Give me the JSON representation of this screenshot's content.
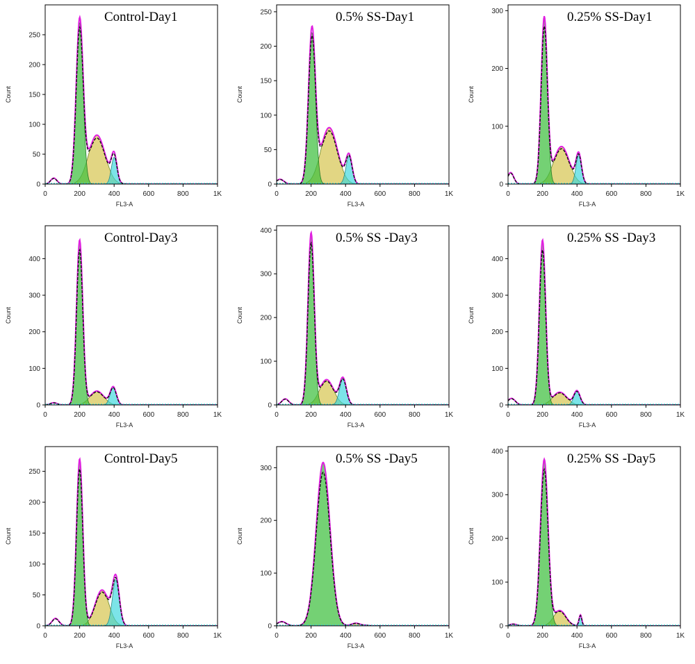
{
  "figure": {
    "colors": {
      "g1": "#3fbf3f",
      "s": "#d8c85a",
      "g2": "#35d6dc",
      "fit": "#e020e0",
      "data": "#111111",
      "frame": "#000000"
    }
  },
  "chart_data": [
    {
      "type": "area",
      "title": "Control-Day1",
      "xlabel": "FL3-A",
      "ylabel": "Count",
      "xlim": [
        0,
        1000
      ],
      "x_ticks": [
        "0",
        "200",
        "400",
        "600",
        "800",
        "1K"
      ],
      "ylim": [
        0,
        300
      ],
      "y_ticks": [
        0,
        50,
        100,
        150,
        200,
        250
      ],
      "g1": {
        "mean": 200,
        "sd": 20,
        "height": 270
      },
      "s": {
        "mean": 300,
        "sd": 48,
        "height": 82
      },
      "g2": {
        "mean": 400,
        "sd": 16,
        "height": 45
      },
      "debris": {
        "mean": 50,
        "sd": 18,
        "height": 10
      }
    },
    {
      "type": "area",
      "title": "0.5% SS-Day1",
      "xlabel": "FL3-A",
      "ylabel": "Count",
      "xlim": [
        0,
        1000
      ],
      "x_ticks": [
        "0",
        "200",
        "400",
        "600",
        "800",
        "1K"
      ],
      "ylim": [
        0,
        260
      ],
      "y_ticks": [
        0,
        50,
        100,
        150,
        200,
        250
      ],
      "g1": {
        "mean": 205,
        "sd": 20,
        "height": 220
      },
      "s": {
        "mean": 305,
        "sd": 48,
        "height": 82
      },
      "g2": {
        "mean": 420,
        "sd": 18,
        "height": 40
      },
      "debris": {
        "mean": 20,
        "sd": 22,
        "height": 7
      }
    },
    {
      "type": "area",
      "title": "0.25% SS-Day1",
      "xlabel": "FL3-A",
      "ylabel": "Count",
      "xlim": [
        0,
        1000
      ],
      "x_ticks": [
        "0",
        "200",
        "400",
        "600",
        "800",
        "1K"
      ],
      "ylim": [
        0,
        310
      ],
      "y_ticks": [
        0,
        100,
        200,
        300
      ],
      "g1": {
        "mean": 210,
        "sd": 18,
        "height": 285
      },
      "s": {
        "mean": 310,
        "sd": 45,
        "height": 65
      },
      "g2": {
        "mean": 410,
        "sd": 16,
        "height": 50
      },
      "debris": {
        "mean": 15,
        "sd": 18,
        "height": 20
      }
    },
    {
      "type": "area",
      "title": "Control-Day3",
      "xlabel": "FL3-A",
      "ylabel": "Count",
      "xlim": [
        0,
        1000
      ],
      "x_ticks": [
        "0",
        "200",
        "400",
        "600",
        "800",
        "1K"
      ],
      "ylim": [
        0,
        490
      ],
      "y_ticks": [
        0,
        100,
        200,
        300,
        400
      ],
      "g1": {
        "mean": 200,
        "sd": 18,
        "height": 450
      },
      "s": {
        "mean": 300,
        "sd": 40,
        "height": 38
      },
      "g2": {
        "mean": 395,
        "sd": 18,
        "height": 48
      },
      "debris": {
        "mean": 50,
        "sd": 20,
        "height": 6
      }
    },
    {
      "type": "area",
      "title": "0.5% SS -Day3",
      "xlabel": "FL3-A",
      "ylabel": "Count",
      "xlim": [
        0,
        1000
      ],
      "x_ticks": [
        "0",
        "200",
        "400",
        "600",
        "800",
        "1K"
      ],
      "ylim": [
        0,
        410
      ],
      "y_ticks": [
        0,
        100,
        200,
        300,
        400
      ],
      "g1": {
        "mean": 200,
        "sd": 18,
        "height": 390
      },
      "s": {
        "mean": 290,
        "sd": 40,
        "height": 58
      },
      "g2": {
        "mean": 385,
        "sd": 20,
        "height": 60
      },
      "debris": {
        "mean": 50,
        "sd": 20,
        "height": 14
      }
    },
    {
      "type": "area",
      "title": "0.25% SS -Day3",
      "xlabel": "FL3-A",
      "ylabel": "Count",
      "xlim": [
        0,
        1000
      ],
      "x_ticks": [
        "0",
        "200",
        "400",
        "600",
        "800",
        "1K"
      ],
      "ylim": [
        0,
        490
      ],
      "y_ticks": [
        0,
        100,
        200,
        300,
        400
      ],
      "g1": {
        "mean": 200,
        "sd": 18,
        "height": 450
      },
      "s": {
        "mean": 300,
        "sd": 40,
        "height": 35
      },
      "g2": {
        "mean": 400,
        "sd": 18,
        "height": 38
      },
      "debris": {
        "mean": 20,
        "sd": 22,
        "height": 18
      }
    },
    {
      "type": "area",
      "title": "Control-Day5",
      "xlabel": "FL3-A",
      "ylabel": "Count",
      "xlim": [
        0,
        1000
      ],
      "x_ticks": [
        "0",
        "200",
        "400",
        "600",
        "800",
        "1K"
      ],
      "ylim": [
        0,
        290
      ],
      "y_ticks": [
        0,
        50,
        100,
        150,
        200,
        250
      ],
      "g1": {
        "mean": 200,
        "sd": 18,
        "height": 270
      },
      "s": {
        "mean": 330,
        "sd": 40,
        "height": 58
      },
      "g2": {
        "mean": 410,
        "sd": 20,
        "height": 75
      },
      "debris": {
        "mean": 60,
        "sd": 20,
        "height": 12
      }
    },
    {
      "type": "area",
      "title": "0.5% SS -Day5",
      "xlabel": "FL3-A",
      "ylabel": "Count",
      "xlim": [
        0,
        1000
      ],
      "x_ticks": [
        "0",
        "200",
        "400",
        "600",
        "800",
        "1K"
      ],
      "ylim": [
        0,
        340
      ],
      "y_ticks": [
        0,
        100,
        200,
        300
      ],
      "g1": {
        "mean": 270,
        "sd": 40,
        "height": 310
      },
      "s": {
        "mean": 460,
        "sd": 25,
        "height": 5
      },
      "g2": {
        "mean": 520,
        "sd": 15,
        "height": 1
      },
      "debris": {
        "mean": 30,
        "sd": 25,
        "height": 8
      }
    },
    {
      "type": "area",
      "title": "0.25% SS -Day5",
      "xlabel": "FL3-A",
      "ylabel": "Count",
      "xlim": [
        0,
        1000
      ],
      "x_ticks": [
        "0",
        "200",
        "400",
        "600",
        "800",
        "1K"
      ],
      "ylim": [
        0,
        410
      ],
      "y_ticks": [
        0,
        100,
        200,
        300,
        400
      ],
      "g1": {
        "mean": 210,
        "sd": 22,
        "height": 380
      },
      "s": {
        "mean": 300,
        "sd": 35,
        "height": 35
      },
      "g2": {
        "mean": 420,
        "sd": 8,
        "height": 25
      },
      "debris": {
        "mean": 30,
        "sd": 20,
        "height": 4
      }
    }
  ]
}
